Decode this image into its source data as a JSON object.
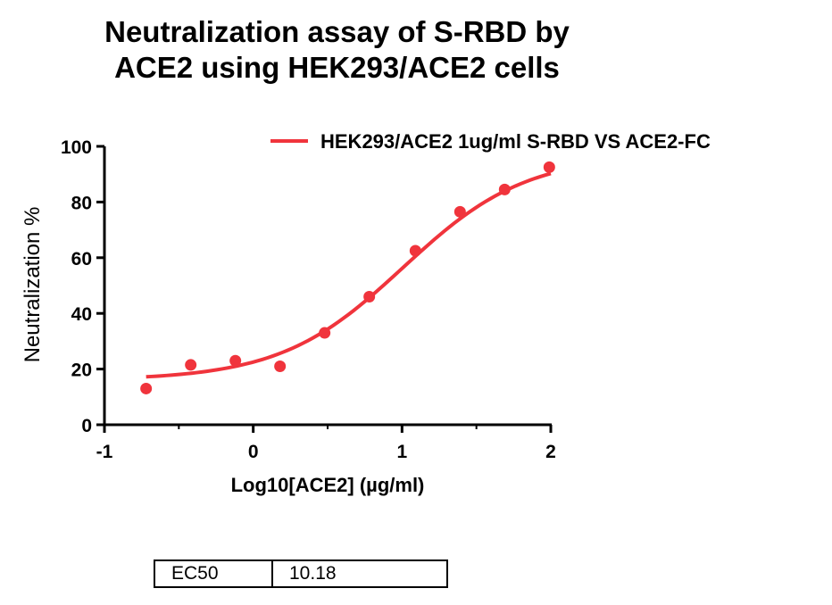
{
  "chart_data": {
    "type": "scatter",
    "title_lines": [
      "Neutralization assay of S-RBD by",
      "ACE2 using HEK293/ACE2 cells"
    ],
    "xlabel": "Log10[ACE2] (µg/ml)",
    "ylabel": "Neutralization %",
    "xlim": [
      -1,
      2
    ],
    "ylim": [
      0,
      100
    ],
    "x_ticks": [
      -1,
      0,
      1,
      2
    ],
    "y_ticks": [
      0,
      20,
      40,
      60,
      80,
      100
    ],
    "legend_position": "top-right",
    "grid": false,
    "color": "#f0343c",
    "series": [
      {
        "name": "HEK293/ACE2 1ug/ml S-RBD VS ACE2-FC",
        "x": [
          -0.72,
          -0.42,
          -0.12,
          0.18,
          0.48,
          0.78,
          1.09,
          1.39,
          1.69,
          1.99
        ],
        "y": [
          13,
          21.5,
          23,
          21,
          33,
          46,
          62.5,
          76.5,
          84.5,
          92.5
        ],
        "fit": {
          "model": "4PL",
          "bottom": 16,
          "top": 97,
          "log_ec50": 1.0078,
          "hill": 1.05,
          "x_range": [
            -0.72,
            2.0
          ]
        }
      }
    ]
  },
  "ec50_table": {
    "label": "EC50",
    "value": "10.18"
  }
}
